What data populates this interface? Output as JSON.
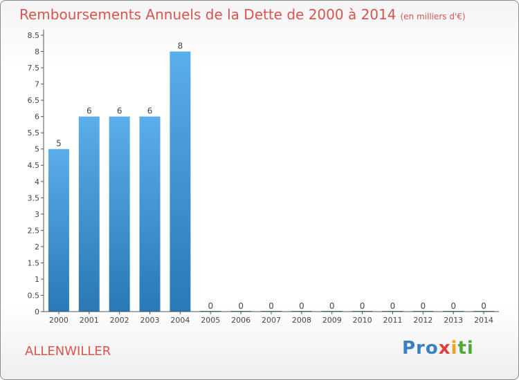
{
  "title": "Remboursements Annuels de la Dette de 2000 à 2014",
  "unit": "(en milliers d'€)",
  "commune": "ALLENWILLER",
  "logo": [
    "Pro",
    "x",
    "i",
    "ti"
  ],
  "colors": {
    "title": "#d9534f",
    "bar_top": "#5aaeea",
    "bar_bottom": "#2a78b6",
    "axis": "#555555",
    "grid": "#cccccc"
  },
  "chart_data": {
    "type": "bar",
    "title": "Remboursements Annuels de la Dette de 2000 à 2014",
    "xlabel": "",
    "ylabel": "",
    "categories": [
      "2000",
      "2001",
      "2002",
      "2003",
      "2004",
      "2005",
      "2006",
      "2007",
      "2008",
      "2009",
      "2010",
      "2011",
      "2012",
      "2013",
      "2014"
    ],
    "values": [
      5,
      6,
      6,
      6,
      8,
      0,
      0,
      0,
      0,
      0,
      0,
      0,
      0,
      0,
      0
    ],
    "data_labels": [
      "5",
      "6",
      "6",
      "6",
      "8",
      "0",
      "0",
      "0",
      "0",
      "0",
      "0",
      "0",
      "0",
      "0",
      "0"
    ],
    "ylim": [
      0,
      8.5
    ],
    "yticks": [
      "0",
      "0.5",
      "1",
      "1.5",
      "2",
      "2.5",
      "3",
      "3.5",
      "4",
      "4.5",
      "5",
      "5.5",
      "6",
      "6.5",
      "7",
      "7.5",
      "8",
      "8.5"
    ],
    "grid": false,
    "legend": "none"
  }
}
